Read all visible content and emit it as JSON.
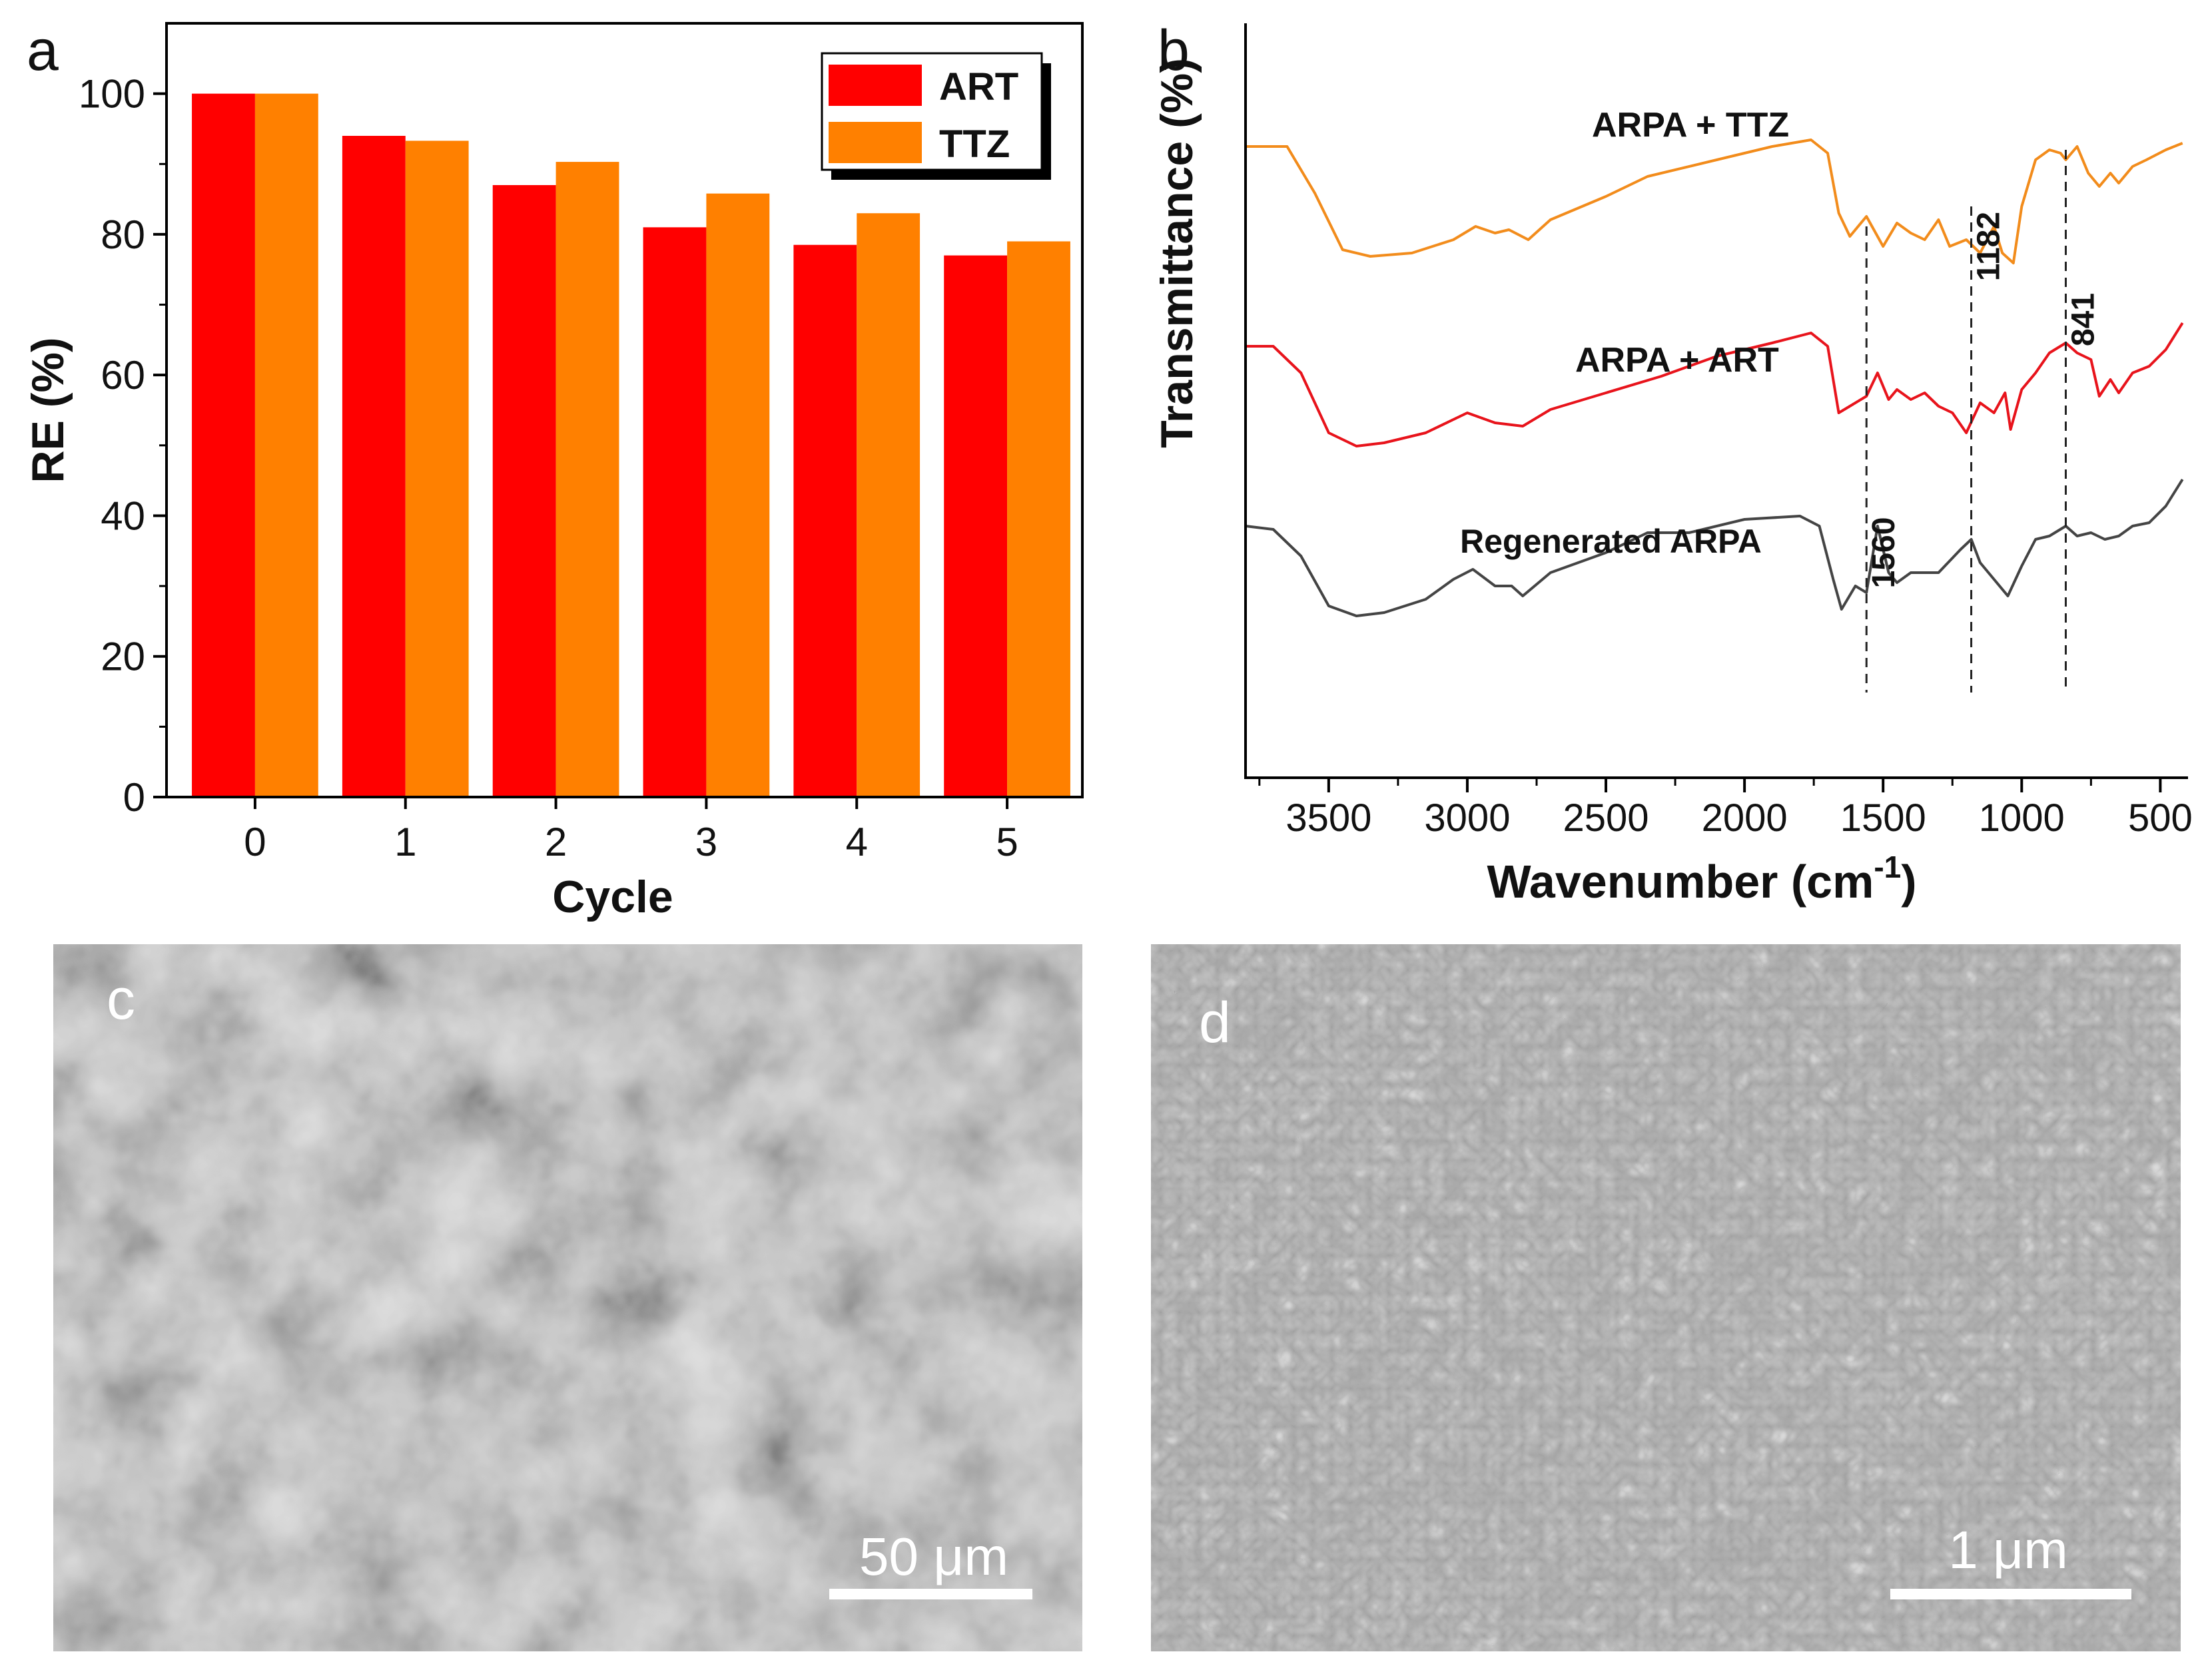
{
  "panel_labels": {
    "a": "a",
    "b": "b",
    "c": "c",
    "d": "d"
  },
  "colors": {
    "art": "#ff0000",
    "ttz": "#ff8000",
    "regen": "#444444",
    "ftir_ttz": "#f28c1c",
    "ftir_art": "#e8141c",
    "axis": "#000000"
  },
  "chart_data": [
    {
      "panel": "a",
      "type": "bar",
      "title": "",
      "xlabel": "Cycle",
      "ylabel": "RE (%)",
      "categories": [
        "0",
        "1",
        "2",
        "3",
        "4",
        "5"
      ],
      "series": [
        {
          "name": "ART",
          "values": [
            100,
            94,
            87,
            81,
            78.5,
            77
          ]
        },
        {
          "name": "TTZ",
          "values": [
            100,
            93.3,
            90.3,
            85.8,
            83,
            79
          ]
        }
      ],
      "ylim": [
        0,
        110
      ],
      "yticks": [
        0,
        20,
        40,
        60,
        80,
        100
      ],
      "legend": "top-right"
    },
    {
      "panel": "b",
      "type": "line",
      "title": "",
      "xlabel_main": "Wavenumber (cm",
      "xlabel_sup": "-1",
      "xlabel_tail": ")",
      "ylabel": "Transmittance (%)",
      "xlim": [
        3800,
        400
      ],
      "xticks": [
        3500,
        3000,
        2500,
        2000,
        1500,
        1000,
        500
      ],
      "series": [
        {
          "name": "ARPA + TTZ",
          "points": [
            [
              3800,
              0.88
            ],
            [
              3650,
              0.88
            ],
            [
              3550,
              0.74
            ],
            [
              3450,
              0.57
            ],
            [
              3350,
              0.55
            ],
            [
              3200,
              0.56
            ],
            [
              3050,
              0.6
            ],
            [
              2970,
              0.64
            ],
            [
              2900,
              0.62
            ],
            [
              2850,
              0.63
            ],
            [
              2780,
              0.6
            ],
            [
              2700,
              0.66
            ],
            [
              2500,
              0.73
            ],
            [
              2350,
              0.79
            ],
            [
              2100,
              0.84
            ],
            [
              1900,
              0.88
            ],
            [
              1760,
              0.9
            ],
            [
              1700,
              0.86
            ],
            [
              1660,
              0.68
            ],
            [
              1620,
              0.61
            ],
            [
              1560,
              0.67
            ],
            [
              1500,
              0.58
            ],
            [
              1450,
              0.65
            ],
            [
              1400,
              0.62
            ],
            [
              1350,
              0.6
            ],
            [
              1300,
              0.66
            ],
            [
              1260,
              0.58
            ],
            [
              1200,
              0.6
            ],
            [
              1150,
              0.56
            ],
            [
              1100,
              0.64
            ],
            [
              1070,
              0.56
            ],
            [
              1030,
              0.53
            ],
            [
              1000,
              0.7
            ],
            [
              950,
              0.84
            ],
            [
              900,
              0.87
            ],
            [
              860,
              0.86
            ],
            [
              841,
              0.84
            ],
            [
              800,
              0.88
            ],
            [
              760,
              0.8
            ],
            [
              720,
              0.76
            ],
            [
              680,
              0.8
            ],
            [
              650,
              0.77
            ],
            [
              600,
              0.82
            ],
            [
              550,
              0.84
            ],
            [
              480,
              0.87
            ],
            [
              420,
              0.89
            ]
          ]
        },
        {
          "name": "ARPA + ART",
          "points": [
            [
              3800,
              0.28
            ],
            [
              3700,
              0.28
            ],
            [
              3600,
              0.2
            ],
            [
              3500,
              0.02
            ],
            [
              3400,
              -0.02
            ],
            [
              3300,
              -0.01
            ],
            [
              3150,
              0.02
            ],
            [
              3000,
              0.08
            ],
            [
              2900,
              0.05
            ],
            [
              2800,
              0.04
            ],
            [
              2700,
              0.09
            ],
            [
              2500,
              0.14
            ],
            [
              2300,
              0.19
            ],
            [
              2100,
              0.25
            ],
            [
              1900,
              0.29
            ],
            [
              1760,
              0.32
            ],
            [
              1700,
              0.28
            ],
            [
              1660,
              0.08
            ],
            [
              1620,
              0.1
            ],
            [
              1560,
              0.13
            ],
            [
              1520,
              0.2
            ],
            [
              1480,
              0.12
            ],
            [
              1450,
              0.15
            ],
            [
              1400,
              0.12
            ],
            [
              1350,
              0.14
            ],
            [
              1300,
              0.1
            ],
            [
              1250,
              0.08
            ],
            [
              1200,
              0.02
            ],
            [
              1150,
              0.11
            ],
            [
              1100,
              0.08
            ],
            [
              1060,
              0.14
            ],
            [
              1040,
              0.03
            ],
            [
              1000,
              0.15
            ],
            [
              950,
              0.2
            ],
            [
              900,
              0.26
            ],
            [
              841,
              0.29
            ],
            [
              800,
              0.26
            ],
            [
              750,
              0.24
            ],
            [
              720,
              0.13
            ],
            [
              680,
              0.18
            ],
            [
              650,
              0.14
            ],
            [
              600,
              0.2
            ],
            [
              540,
              0.22
            ],
            [
              480,
              0.27
            ],
            [
              420,
              0.35
            ]
          ]
        },
        {
          "name": "Regenerated ARPA",
          "points": [
            [
              3800,
              -0.26
            ],
            [
              3700,
              -0.27
            ],
            [
              3600,
              -0.35
            ],
            [
              3500,
              -0.5
            ],
            [
              3400,
              -0.53
            ],
            [
              3300,
              -0.52
            ],
            [
              3150,
              -0.48
            ],
            [
              3050,
              -0.42
            ],
            [
              2980,
              -0.39
            ],
            [
              2900,
              -0.44
            ],
            [
              2840,
              -0.44
            ],
            [
              2800,
              -0.47
            ],
            [
              2700,
              -0.4
            ],
            [
              2500,
              -0.34
            ],
            [
              2350,
              -0.28
            ],
            [
              2200,
              -0.28
            ],
            [
              2000,
              -0.24
            ],
            [
              1800,
              -0.23
            ],
            [
              1730,
              -0.26
            ],
            [
              1680,
              -0.42
            ],
            [
              1650,
              -0.51
            ],
            [
              1600,
              -0.44
            ],
            [
              1560,
              -0.46
            ],
            [
              1520,
              -0.26
            ],
            [
              1480,
              -0.4
            ],
            [
              1450,
              -0.43
            ],
            [
              1400,
              -0.4
            ],
            [
              1300,
              -0.4
            ],
            [
              1220,
              -0.33
            ],
            [
              1182,
              -0.3
            ],
            [
              1150,
              -0.37
            ],
            [
              1100,
              -0.42
            ],
            [
              1050,
              -0.47
            ],
            [
              1000,
              -0.38
            ],
            [
              950,
              -0.3
            ],
            [
              900,
              -0.29
            ],
            [
              841,
              -0.26
            ],
            [
              800,
              -0.29
            ],
            [
              750,
              -0.28
            ],
            [
              700,
              -0.3
            ],
            [
              650,
              -0.29
            ],
            [
              600,
              -0.26
            ],
            [
              540,
              -0.25
            ],
            [
              480,
              -0.2
            ],
            [
              420,
              -0.12
            ]
          ]
        }
      ],
      "curve_labels": [
        "ARPA + TTZ",
        "ARPA + ART",
        "Regenerated ARPA"
      ],
      "markers": [
        {
          "x": 1560,
          "label": "1560"
        },
        {
          "x": 1182,
          "label": "1182"
        },
        {
          "x": 841,
          "label": "841"
        }
      ]
    }
  ],
  "sem_c": {
    "scale_bar": "50 μm"
  },
  "sem_d": {
    "scale_bar": "1 μm"
  }
}
